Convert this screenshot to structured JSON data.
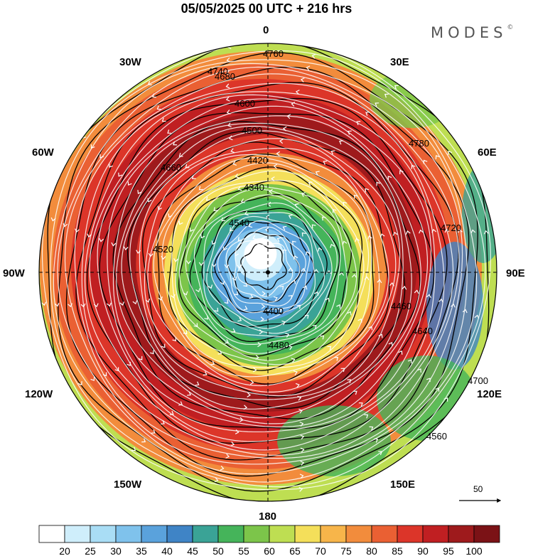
{
  "header": {
    "title": "05/05/2025  00 UTC  + 216 hrs"
  },
  "brand": {
    "name": "MODES",
    "mark": "©"
  },
  "map": {
    "projection": "north-polar-stereographic",
    "longitude_labels": {
      "n": "0",
      "ne1": "30E",
      "ne2": "60E",
      "e": "90E",
      "se1": "120E",
      "se2": "150E",
      "s": "180",
      "sw1": "150W",
      "sw2": "120W",
      "w": "90W",
      "nw1": "60W",
      "nw2": "30W"
    },
    "contour_labels": [
      "4760",
      "4740",
      "4680",
      "4600",
      "4500",
      "4420",
      "4340",
      "4540",
      "4660",
      "4780",
      "4720",
      "4700",
      "4640",
      "4560",
      "4460",
      "4400",
      "4480",
      "4520"
    ],
    "reference_vector": {
      "label": "50"
    },
    "colors": {
      "low": "#ffffff",
      "mid": "#4fb84f",
      "high": "#8b1010"
    }
  },
  "colorbar": {
    "labels": [
      "20",
      "25",
      "30",
      "35",
      "40",
      "45",
      "50",
      "55",
      "60",
      "65",
      "70",
      "75",
      "80",
      "85",
      "90",
      "95",
      "100"
    ],
    "colors": [
      "#ffffff",
      "#cfeefb",
      "#a9ddf5",
      "#7fc2ec",
      "#5aa2dc",
      "#3f84c6",
      "#3aa396",
      "#45b45a",
      "#7cc54a",
      "#bede52",
      "#f4df5a",
      "#f7b54a",
      "#f28c3c",
      "#ea6033",
      "#dc3529",
      "#c01f22",
      "#9e1a1c",
      "#7b1216"
    ]
  }
}
